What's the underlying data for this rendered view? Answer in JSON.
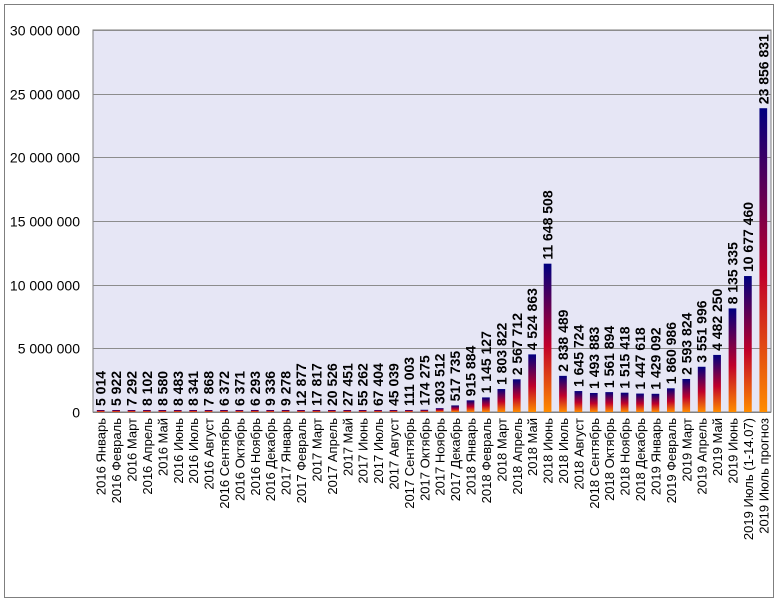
{
  "chart_data": {
    "type": "bar",
    "title": "",
    "xlabel": "",
    "ylabel": "",
    "ylim": [
      0,
      30000000
    ],
    "grid": true,
    "legend": "none",
    "yticks": [
      {
        "value": 0,
        "label": "0"
      },
      {
        "value": 5000000,
        "label": "5 000 000"
      },
      {
        "value": 10000000,
        "label": "10 000 000"
      },
      {
        "value": 15000000,
        "label": "15 000 000"
      },
      {
        "value": 20000000,
        "label": "20 000 000"
      },
      {
        "value": 25000000,
        "label": "25 000 000"
      },
      {
        "value": 30000000,
        "label": "30 000 000"
      }
    ],
    "categories": [
      "2016 Январь",
      "2016 Февраль",
      "2016 Март",
      "2016 Апрель",
      "2016 Май",
      "2016 Июнь",
      "2016 Июль",
      "2016 Август",
      "2016 Сентябрь",
      "2016 Октябрь",
      "2016 Ноябрь",
      "2016 Декабрь",
      "2017 Январь",
      "2017 Февраль",
      "2017 Март",
      "2017 Апрель",
      "2017 Май",
      "2017 Июнь",
      "2017 Июль",
      "2017 Август",
      "2017 Сентябрь",
      "2017 Октябрь",
      "2017 Ноябрь",
      "2017 Декабрь",
      "2018 Январь",
      "2018 Февраль",
      "2018 Март",
      "2018 Апрель",
      "2018 Май",
      "2018 Июнь",
      "2018 Июль",
      "2018 Август",
      "2018 Сентябрь",
      "2018 Октябрь",
      "2018 Ноябрь",
      "2018 Декабрь",
      "2019 Январь",
      "2019 Февраль",
      "2019 Март",
      "2019 Апрель",
      "2019 Май",
      "2019 Июнь",
      "2019 Июль (1-14.07)",
      "2019 Июль прогноз"
    ],
    "values": [
      5014,
      5922,
      7292,
      8102,
      8580,
      8483,
      8341,
      7868,
      6372,
      6371,
      6293,
      9336,
      9278,
      12877,
      17817,
      20526,
      27451,
      55262,
      67404,
      45039,
      111003,
      174275,
      303512,
      517735,
      915884,
      1145127,
      1803822,
      2567712,
      4524863,
      11648508,
      2838489,
      1645724,
      1493883,
      1561894,
      1515418,
      1447618,
      1429092,
      1860986,
      2593824,
      3551996,
      4482250,
      8135335,
      10677460,
      23856831
    ],
    "value_labels": [
      "5 014",
      "5 922",
      "7 292",
      "8 102",
      "8 580",
      "8 483",
      "8 341",
      "7 868",
      "6 372",
      "6 371",
      "6 293",
      "9 336",
      "9 278",
      "12 877",
      "17 817",
      "20 526",
      "27 451",
      "55 262",
      "67 404",
      "45 039",
      "111 003",
      "174 275",
      "303 512",
      "517 735",
      "915 884",
      "1 145 127",
      "1 803 822",
      "2 567 712",
      "4 524 863",
      "11 648 508",
      "2 838 489",
      "1 645 724",
      "1 493 883",
      "1 561 894",
      "1 515 418",
      "1 447 618",
      "1 429 092",
      "1 860 986",
      "2 593 824",
      "3 551 996",
      "4 482 250",
      "8 135 335",
      "10 677 460",
      "23 856 831"
    ],
    "colors": {
      "bar_top": "#00007f",
      "bar_mid": "#c0002a",
      "bar_bottom": "#ff8c00",
      "plot_bg": "#e6e6f5",
      "grid": "#8c8c8c",
      "axis": "#7f7f7f",
      "text": "#000000"
    }
  }
}
